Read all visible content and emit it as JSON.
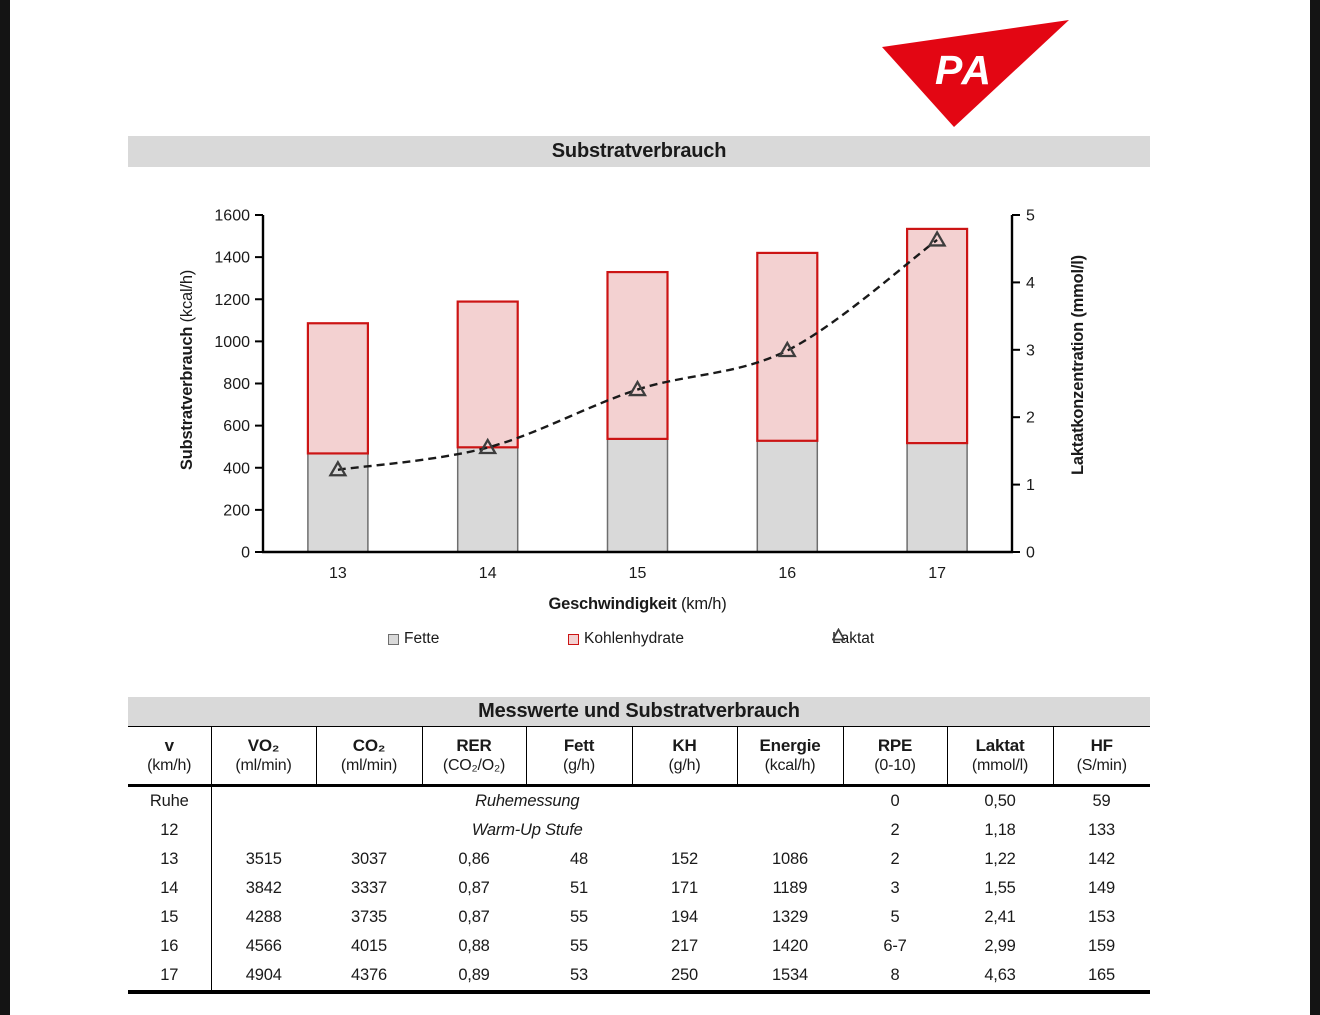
{
  "logo": {
    "text": "PA",
    "color": "#E30613"
  },
  "chart": {
    "title": "Substratverbrauch",
    "banner_bg": "#D9D9D9",
    "y_left_label": "Substratverbrauch",
    "y_left_unit": "(kcal/h)",
    "y_right_label": "Laktatkonzentration (mmol/l)",
    "x_label": "Geschwindigkeit",
    "x_unit": "(km/h)",
    "legend": [
      {
        "name": "Fette"
      },
      {
        "name": "Kohlenhydrate"
      },
      {
        "name": "Laktat"
      }
    ]
  },
  "chart_data": {
    "type": "bar",
    "title": "Substratverbrauch",
    "categories": [
      "13",
      "14",
      "15",
      "16",
      "17"
    ],
    "xlabel": "Geschwindigkeit (km/h)",
    "ylabel_left": "Substratverbrauch (kcal/h)",
    "ylabel_right": "Laktatkonzentration (mmol/l)",
    "ylim_left": [
      0,
      1600
    ],
    "ystep_left": 200,
    "ylim_right": [
      0,
      5
    ],
    "ystep_right": 1,
    "grid": false,
    "legend_position": "bottom",
    "series": [
      {
        "name": "Fette",
        "type": "stacked-bar",
        "axis": "left",
        "unit": "kcal/h",
        "values": [
          468,
          497,
          537,
          528,
          517
        ]
      },
      {
        "name": "Kohlenhydrate",
        "type": "stacked-bar",
        "axis": "left",
        "unit": "kcal/h",
        "values": [
          618,
          692,
          792,
          892,
          1017
        ]
      },
      {
        "name": "Laktat",
        "type": "dashed-line-triangle-markers",
        "axis": "right",
        "unit": "mmol/l",
        "values": [
          1.22,
          1.55,
          2.41,
          2.99,
          4.63
        ]
      }
    ],
    "totals_kcal": [
      1086,
      1189,
      1329,
      1420,
      1534
    ],
    "colors": {
      "fette_fill": "#D9D9D9",
      "fette_stroke": "#6e6e6e",
      "kohlenhydrate_fill": "#F3D1D1",
      "kohlenhydrate_stroke": "#CC1414",
      "laktat_line": "#1a1a1a",
      "laktat_marker": "#3d3d3d",
      "axis": "#000000"
    }
  },
  "table": {
    "title": "Messwerte und Substratverbrauch",
    "columns": [
      {
        "label": "v",
        "unit": "(km/h)"
      },
      {
        "label": "VO₂",
        "unit": "(ml/min)"
      },
      {
        "label": "CO₂",
        "unit": "(ml/min)"
      },
      {
        "label": "RER",
        "unit": "(CO₂/O₂)"
      },
      {
        "label": "Fett",
        "unit": "(g/h)"
      },
      {
        "label": "KH",
        "unit": "(g/h)"
      },
      {
        "label": "Energie",
        "unit": "(kcal/h)"
      },
      {
        "label": "RPE",
        "unit": "(0-10)"
      },
      {
        "label": "Laktat",
        "unit": "(mmol/l)"
      },
      {
        "label": "HF",
        "unit": "(S/min)"
      }
    ],
    "rows": [
      {
        "v": "Ruhe",
        "note": "Ruhemessung",
        "rpe": "0",
        "laktat": "0,50",
        "hf": "59"
      },
      {
        "v": "12",
        "note": "Warm-Up Stufe",
        "rpe": "2",
        "laktat": "1,18",
        "hf": "133"
      },
      {
        "v": "13",
        "vo2": "3515",
        "co2": "3037",
        "rer": "0,86",
        "fett": "48",
        "kh": "152",
        "energie": "1086",
        "rpe": "2",
        "laktat": "1,22",
        "hf": "142"
      },
      {
        "v": "14",
        "vo2": "3842",
        "co2": "3337",
        "rer": "0,87",
        "fett": "51",
        "kh": "171",
        "energie": "1189",
        "rpe": "3",
        "laktat": "1,55",
        "hf": "149"
      },
      {
        "v": "15",
        "vo2": "4288",
        "co2": "3735",
        "rer": "0,87",
        "fett": "55",
        "kh": "194",
        "energie": "1329",
        "rpe": "5",
        "laktat": "2,41",
        "hf": "153"
      },
      {
        "v": "16",
        "vo2": "4566",
        "co2": "4015",
        "rer": "0,88",
        "fett": "55",
        "kh": "217",
        "energie": "1420",
        "rpe": "6-7",
        "laktat": "2,99",
        "hf": "159"
      },
      {
        "v": "17",
        "vo2": "4904",
        "co2": "4376",
        "rer": "0,89",
        "fett": "53",
        "kh": "250",
        "energie": "1534",
        "rpe": "8",
        "laktat": "4,63",
        "hf": "165"
      }
    ]
  }
}
